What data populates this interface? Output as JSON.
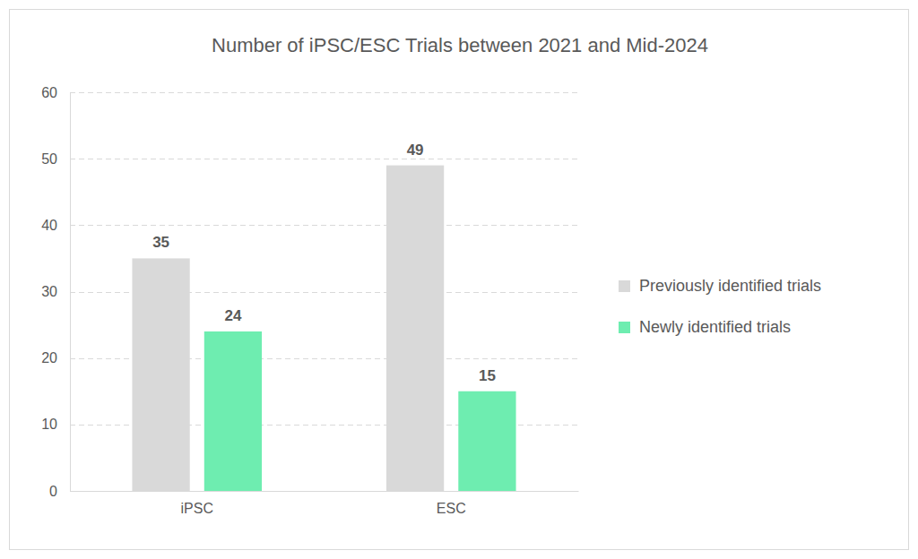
{
  "chart_data": {
    "type": "bar",
    "title": "Number of iPSC/ESC Trials between 2021 and Mid-2024",
    "categories": [
      "iPSC",
      "ESC"
    ],
    "series": [
      {
        "name": "Previously identified trials",
        "color": "#d9d9d9",
        "values": [
          35,
          49
        ]
      },
      {
        "name": "Newly identified trials",
        "color": "#6eedb0",
        "values": [
          24,
          15
        ]
      }
    ],
    "ylim": [
      0,
      60
    ],
    "yticks": [
      0,
      10,
      20,
      30,
      40,
      50,
      60
    ],
    "grid": true,
    "legend": "right",
    "data_labels": true
  }
}
